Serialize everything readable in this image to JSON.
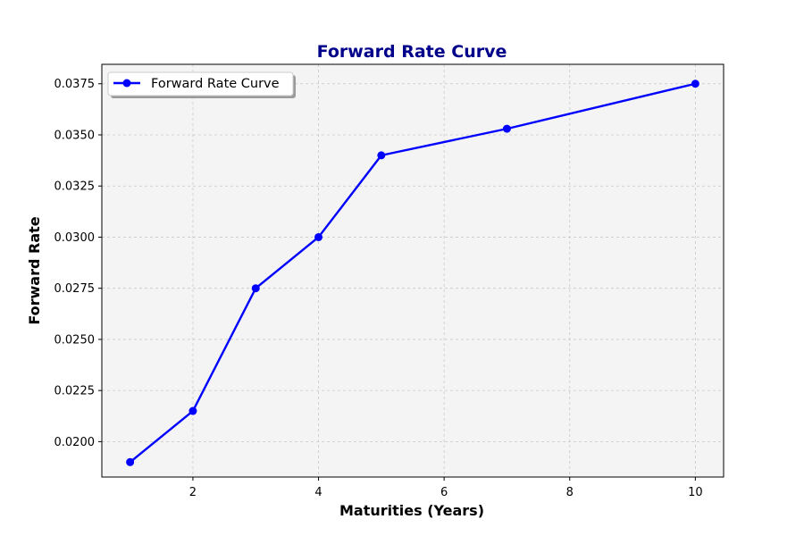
{
  "chart_data": {
    "type": "line",
    "title": "Forward Rate Curve",
    "xlabel": "Maturities (Years)",
    "ylabel": "Forward Rate",
    "xlim": [
      0.55,
      10.45
    ],
    "ylim": [
      0.01827,
      0.03845
    ],
    "x_ticks": [
      2,
      4,
      6,
      8,
      10
    ],
    "y_ticks": [
      0.02,
      0.0225,
      0.025,
      0.0275,
      0.03,
      0.0325,
      0.035,
      0.0375
    ],
    "x_tick_labels": [
      "2",
      "4",
      "6",
      "8",
      "10"
    ],
    "y_tick_labels": [
      "0.0200",
      "0.0225",
      "0.0250",
      "0.0275",
      "0.0300",
      "0.0325",
      "0.0350",
      "0.0375"
    ],
    "grid": true,
    "legend_position": "upper-left",
    "series": [
      {
        "name": "Forward Rate Curve",
        "color": "#0000ff",
        "marker": "circle",
        "x": [
          1,
          2,
          3,
          4,
          5,
          7,
          10
        ],
        "y": [
          0.019,
          0.0215,
          0.0275,
          0.03,
          0.034,
          0.0353,
          0.0375
        ]
      }
    ],
    "colors": {
      "title": "#00008b",
      "plot_background": "#f4f4f4",
      "grid": "#c8c8c8",
      "line": "#0000ff"
    }
  }
}
